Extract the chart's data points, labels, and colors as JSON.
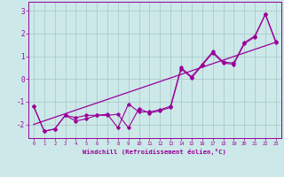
{
  "xlabel": "Windchill (Refroidissement éolien,°C)",
  "bg_color": "#cce8e8",
  "grid_color": "#aacccc",
  "line_color": "#990099",
  "xlim": [
    -0.5,
    23.5
  ],
  "ylim": [
    -2.6,
    3.4
  ],
  "x_data": [
    0,
    1,
    2,
    3,
    4,
    5,
    6,
    7,
    8,
    9,
    10,
    11,
    12,
    13,
    14,
    15,
    16,
    17,
    18,
    19,
    20,
    21,
    22,
    23
  ],
  "line1": [
    -1.2,
    -2.3,
    -2.2,
    -1.6,
    -1.7,
    -1.6,
    -1.6,
    -1.55,
    -2.15,
    -1.1,
    -1.45,
    -1.45,
    -1.35,
    -1.2,
    0.5,
    0.1,
    0.65,
    1.2,
    0.75,
    0.7,
    1.6,
    1.9,
    2.85,
    1.65
  ],
  "line2": [
    -1.2,
    -2.3,
    -2.2,
    -1.6,
    -1.85,
    -1.75,
    -1.6,
    -1.6,
    -1.55,
    -2.15,
    -1.3,
    -1.5,
    -1.4,
    -1.25,
    0.45,
    0.05,
    0.6,
    1.15,
    0.7,
    0.65,
    1.55,
    1.85,
    2.85,
    1.6
  ],
  "line3_x": [
    0,
    23
  ],
  "line3_y": [
    -2.0,
    1.62
  ],
  "xticks": [
    0,
    1,
    2,
    3,
    4,
    5,
    6,
    7,
    8,
    9,
    10,
    11,
    12,
    13,
    14,
    15,
    16,
    17,
    18,
    19,
    20,
    21,
    22,
    23
  ],
  "yticks": [
    -2,
    -1,
    0,
    1,
    2,
    3
  ]
}
